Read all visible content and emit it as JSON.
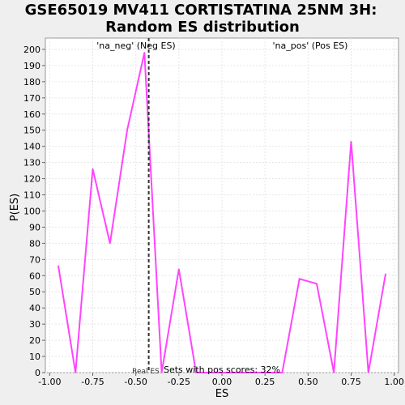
{
  "chart_data": {
    "type": "line",
    "title": "GSE65019 MV411 CORTISTATINA 25NM 3H:",
    "subtitle": "Random ES distribution",
    "xlabel": "ES",
    "ylabel": "P(ES)",
    "xlim": [
      -1.025,
      1.025
    ],
    "ylim": [
      0,
      207
    ],
    "x_ticks": [
      "-1.00",
      "-0.75",
      "-0.50",
      "-0.25",
      "0.00",
      "0.25",
      "0.50",
      "0.75",
      "1.00"
    ],
    "y_ticks": [
      "0",
      "10",
      "20",
      "30",
      "40",
      "50",
      "60",
      "70",
      "80",
      "90",
      "100",
      "110",
      "120",
      "130",
      "140",
      "150",
      "160",
      "170",
      "180",
      "190",
      "200"
    ],
    "grid": true,
    "series": [
      {
        "color": "#ff44ff",
        "x": [
          -0.95,
          -0.85,
          -0.75,
          -0.65,
          -0.55,
          -0.45,
          -0.35,
          -0.25,
          -0.15,
          -0.05,
          0.05,
          0.15,
          0.25,
          0.35,
          0.45,
          0.55,
          0.65,
          0.75,
          0.85,
          0.95
        ],
        "y": [
          66,
          0,
          126,
          80,
          150,
          198,
          0,
          64,
          0,
          0,
          0,
          0,
          0,
          0,
          58,
          55,
          0,
          143,
          0,
          61
        ]
      }
    ],
    "real_es": -0.425,
    "real_es_label": "Real ES",
    "neg_label": "'na_neg' (Neg ES)",
    "neg_color": "#3333cc",
    "pos_label": "'na_pos' (Pos ES)",
    "pos_color": "#dd3333",
    "footnote": "Sets with pos scores: 32%"
  }
}
